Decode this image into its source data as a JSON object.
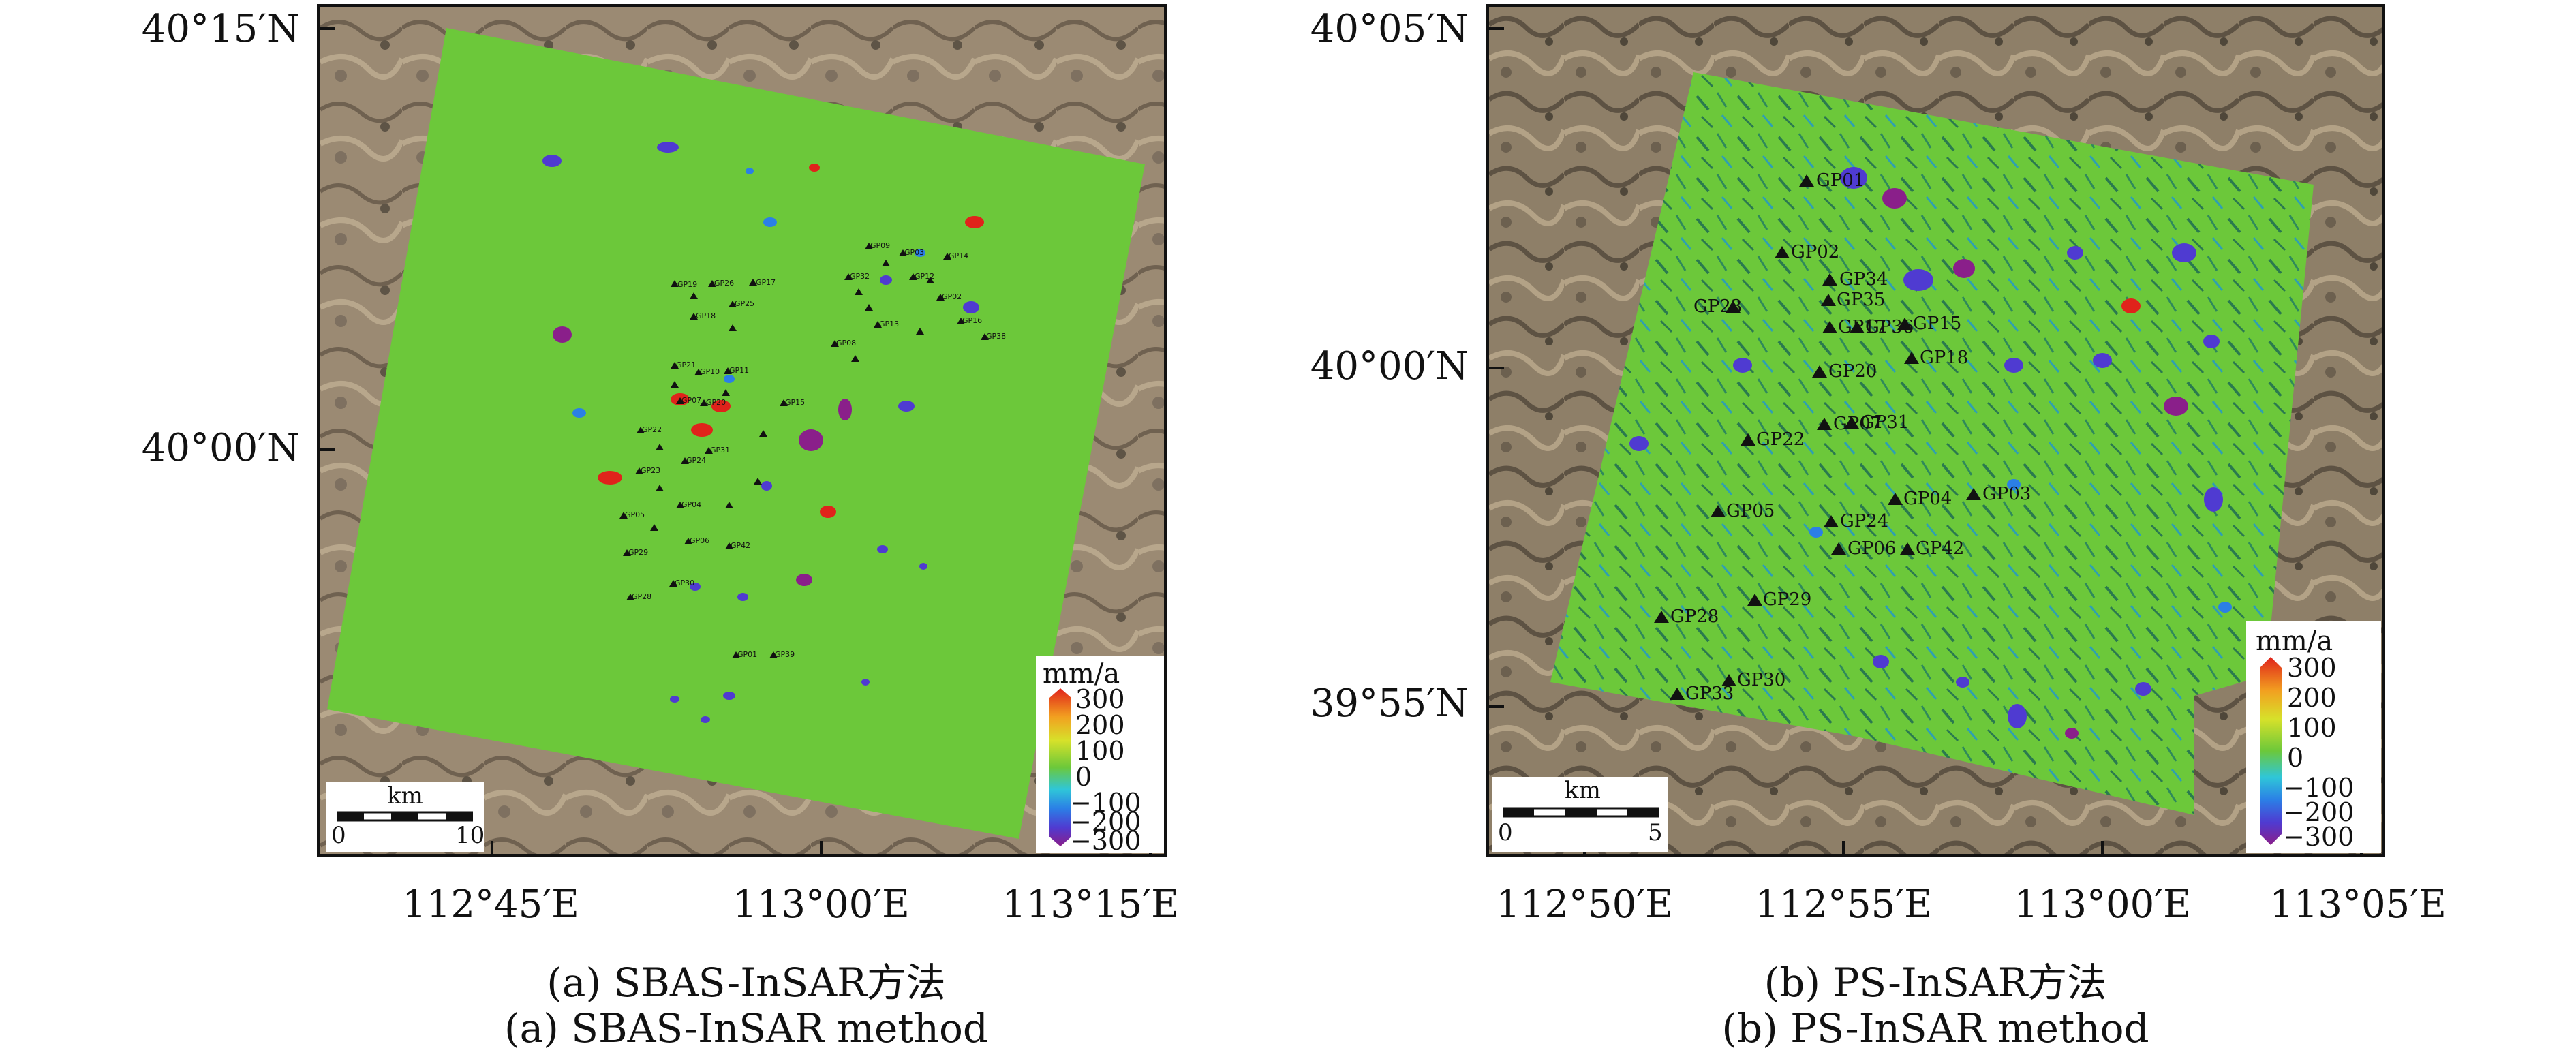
{
  "colors": {
    "deformation_green": "#6cc83a",
    "frame": "#111111",
    "colorbar": [
      "#8a1f8a",
      "#4f3bd1",
      "#2b7fe6",
      "#2fc6d8",
      "#6cc83a",
      "#d7e12a",
      "#f2a020",
      "#e0231b"
    ]
  },
  "panel_a": {
    "lat_labels": [
      "40°15′N",
      "40°00′N"
    ],
    "lon_labels": [
      "112°45′E",
      "113°00′E",
      "113°15′E"
    ],
    "legend": {
      "title": "mm/a",
      "ticks": [
        "300",
        "200",
        "100",
        "0",
        "−100",
        "−200",
        "−300"
      ]
    },
    "scalebar": {
      "unit": "km",
      "start": "0",
      "end": "10"
    },
    "caption_cn": "(a) SBAS-InSAR方法",
    "caption_en": "(a) SBAS-InSAR method"
  },
  "panel_b": {
    "lat_labels": [
      "40°05′N",
      "40°00′N",
      "39°55′N"
    ],
    "lon_labels": [
      "112°50′E",
      "112°55′E",
      "113°00′E",
      "113°05′E"
    ],
    "legend": {
      "title": "mm/a",
      "ticks": [
        "300",
        "200",
        "100",
        "0",
        "−100",
        "−200",
        "−300"
      ]
    },
    "scalebar": {
      "unit": "km",
      "start": "0",
      "end": "5"
    },
    "caption_cn": "(b) PS-InSAR方法",
    "caption_en": "(b) PS-InSAR method",
    "points": [
      "GP01",
      "GP02",
      "GP34",
      "GP35",
      "GP23",
      "GP36",
      "GP15",
      "GP18",
      "GP20",
      "GP22",
      "GP07",
      "GP31",
      "GP05",
      "GP24",
      "GP04",
      "GP03",
      "GP06",
      "GP42",
      "GP29",
      "GP28",
      "GP30",
      "GP33",
      "GP17"
    ]
  }
}
